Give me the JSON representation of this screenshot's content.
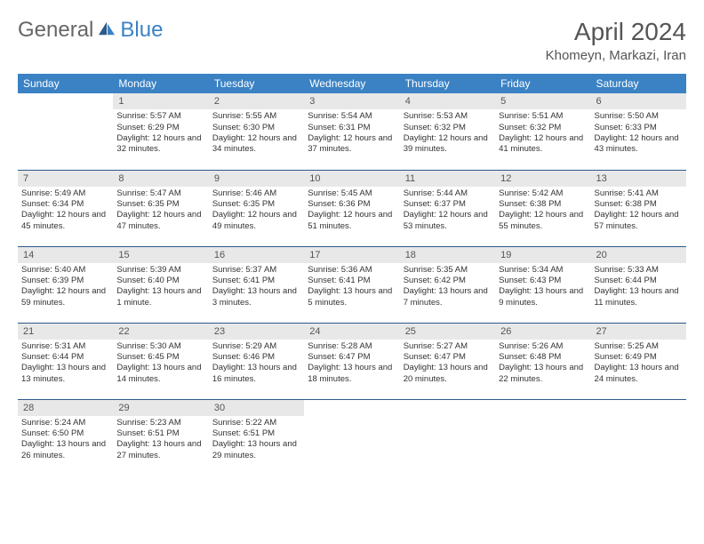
{
  "logo": {
    "general": "General",
    "blue": "Blue"
  },
  "title": "April 2024",
  "location": "Khomeyn, Markazi, Iran",
  "weekdays": [
    "Sunday",
    "Monday",
    "Tuesday",
    "Wednesday",
    "Thursday",
    "Friday",
    "Saturday"
  ],
  "colors": {
    "header_bg": "#3b82c4",
    "daynum_bg": "#e8e8e8",
    "rule": "#2c5a8a"
  },
  "weeks": [
    [
      {
        "n": "",
        "sr": "",
        "ss": "",
        "dl": ""
      },
      {
        "n": "1",
        "sr": "Sunrise: 5:57 AM",
        "ss": "Sunset: 6:29 PM",
        "dl": "Daylight: 12 hours and 32 minutes."
      },
      {
        "n": "2",
        "sr": "Sunrise: 5:55 AM",
        "ss": "Sunset: 6:30 PM",
        "dl": "Daylight: 12 hours and 34 minutes."
      },
      {
        "n": "3",
        "sr": "Sunrise: 5:54 AM",
        "ss": "Sunset: 6:31 PM",
        "dl": "Daylight: 12 hours and 37 minutes."
      },
      {
        "n": "4",
        "sr": "Sunrise: 5:53 AM",
        "ss": "Sunset: 6:32 PM",
        "dl": "Daylight: 12 hours and 39 minutes."
      },
      {
        "n": "5",
        "sr": "Sunrise: 5:51 AM",
        "ss": "Sunset: 6:32 PM",
        "dl": "Daylight: 12 hours and 41 minutes."
      },
      {
        "n": "6",
        "sr": "Sunrise: 5:50 AM",
        "ss": "Sunset: 6:33 PM",
        "dl": "Daylight: 12 hours and 43 minutes."
      }
    ],
    [
      {
        "n": "7",
        "sr": "Sunrise: 5:49 AM",
        "ss": "Sunset: 6:34 PM",
        "dl": "Daylight: 12 hours and 45 minutes."
      },
      {
        "n": "8",
        "sr": "Sunrise: 5:47 AM",
        "ss": "Sunset: 6:35 PM",
        "dl": "Daylight: 12 hours and 47 minutes."
      },
      {
        "n": "9",
        "sr": "Sunrise: 5:46 AM",
        "ss": "Sunset: 6:35 PM",
        "dl": "Daylight: 12 hours and 49 minutes."
      },
      {
        "n": "10",
        "sr": "Sunrise: 5:45 AM",
        "ss": "Sunset: 6:36 PM",
        "dl": "Daylight: 12 hours and 51 minutes."
      },
      {
        "n": "11",
        "sr": "Sunrise: 5:44 AM",
        "ss": "Sunset: 6:37 PM",
        "dl": "Daylight: 12 hours and 53 minutes."
      },
      {
        "n": "12",
        "sr": "Sunrise: 5:42 AM",
        "ss": "Sunset: 6:38 PM",
        "dl": "Daylight: 12 hours and 55 minutes."
      },
      {
        "n": "13",
        "sr": "Sunrise: 5:41 AM",
        "ss": "Sunset: 6:38 PM",
        "dl": "Daylight: 12 hours and 57 minutes."
      }
    ],
    [
      {
        "n": "14",
        "sr": "Sunrise: 5:40 AM",
        "ss": "Sunset: 6:39 PM",
        "dl": "Daylight: 12 hours and 59 minutes."
      },
      {
        "n": "15",
        "sr": "Sunrise: 5:39 AM",
        "ss": "Sunset: 6:40 PM",
        "dl": "Daylight: 13 hours and 1 minute."
      },
      {
        "n": "16",
        "sr": "Sunrise: 5:37 AM",
        "ss": "Sunset: 6:41 PM",
        "dl": "Daylight: 13 hours and 3 minutes."
      },
      {
        "n": "17",
        "sr": "Sunrise: 5:36 AM",
        "ss": "Sunset: 6:41 PM",
        "dl": "Daylight: 13 hours and 5 minutes."
      },
      {
        "n": "18",
        "sr": "Sunrise: 5:35 AM",
        "ss": "Sunset: 6:42 PM",
        "dl": "Daylight: 13 hours and 7 minutes."
      },
      {
        "n": "19",
        "sr": "Sunrise: 5:34 AM",
        "ss": "Sunset: 6:43 PM",
        "dl": "Daylight: 13 hours and 9 minutes."
      },
      {
        "n": "20",
        "sr": "Sunrise: 5:33 AM",
        "ss": "Sunset: 6:44 PM",
        "dl": "Daylight: 13 hours and 11 minutes."
      }
    ],
    [
      {
        "n": "21",
        "sr": "Sunrise: 5:31 AM",
        "ss": "Sunset: 6:44 PM",
        "dl": "Daylight: 13 hours and 13 minutes."
      },
      {
        "n": "22",
        "sr": "Sunrise: 5:30 AM",
        "ss": "Sunset: 6:45 PM",
        "dl": "Daylight: 13 hours and 14 minutes."
      },
      {
        "n": "23",
        "sr": "Sunrise: 5:29 AM",
        "ss": "Sunset: 6:46 PM",
        "dl": "Daylight: 13 hours and 16 minutes."
      },
      {
        "n": "24",
        "sr": "Sunrise: 5:28 AM",
        "ss": "Sunset: 6:47 PM",
        "dl": "Daylight: 13 hours and 18 minutes."
      },
      {
        "n": "25",
        "sr": "Sunrise: 5:27 AM",
        "ss": "Sunset: 6:47 PM",
        "dl": "Daylight: 13 hours and 20 minutes."
      },
      {
        "n": "26",
        "sr": "Sunrise: 5:26 AM",
        "ss": "Sunset: 6:48 PM",
        "dl": "Daylight: 13 hours and 22 minutes."
      },
      {
        "n": "27",
        "sr": "Sunrise: 5:25 AM",
        "ss": "Sunset: 6:49 PM",
        "dl": "Daylight: 13 hours and 24 minutes."
      }
    ],
    [
      {
        "n": "28",
        "sr": "Sunrise: 5:24 AM",
        "ss": "Sunset: 6:50 PM",
        "dl": "Daylight: 13 hours and 26 minutes."
      },
      {
        "n": "29",
        "sr": "Sunrise: 5:23 AM",
        "ss": "Sunset: 6:51 PM",
        "dl": "Daylight: 13 hours and 27 minutes."
      },
      {
        "n": "30",
        "sr": "Sunrise: 5:22 AM",
        "ss": "Sunset: 6:51 PM",
        "dl": "Daylight: 13 hours and 29 minutes."
      },
      {
        "n": "",
        "sr": "",
        "ss": "",
        "dl": ""
      },
      {
        "n": "",
        "sr": "",
        "ss": "",
        "dl": ""
      },
      {
        "n": "",
        "sr": "",
        "ss": "",
        "dl": ""
      },
      {
        "n": "",
        "sr": "",
        "ss": "",
        "dl": ""
      }
    ]
  ]
}
